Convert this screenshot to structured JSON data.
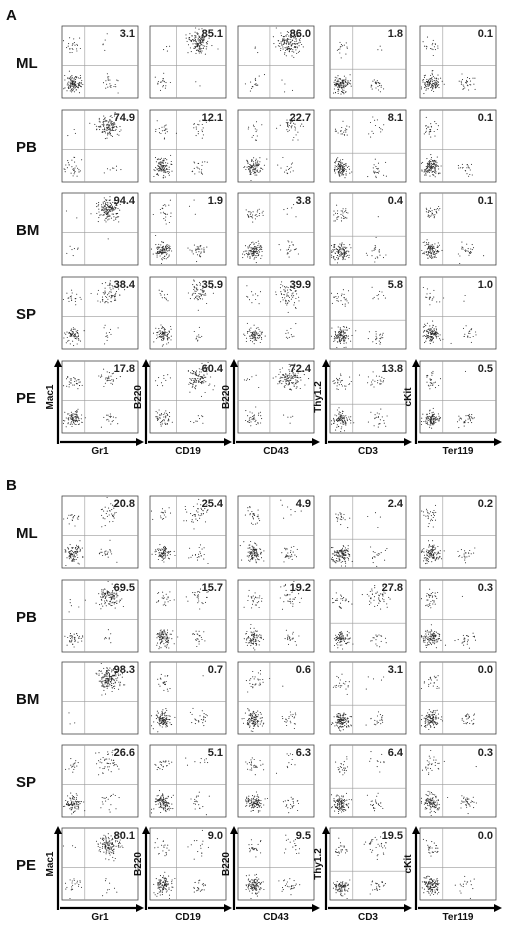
{
  "chart_data": [
    {
      "panel": "A",
      "type": "scatter",
      "rows": [
        "ML",
        "PB",
        "BM",
        "SP",
        "PE"
      ],
      "columns": [
        {
          "x_label": "Gr1",
          "y_label": "Mac1"
        },
        {
          "x_label": "CD19",
          "y_label": "B220"
        },
        {
          "x_label": "CD43",
          "y_label": "B220"
        },
        {
          "x_label": "CD3",
          "y_label": "Thy1.2"
        },
        {
          "x_label": "Ter119",
          "y_label": "cKit"
        }
      ],
      "values": [
        [
          3.1,
          85.1,
          86.0,
          1.8,
          0.1
        ],
        [
          74.9,
          12.1,
          22.7,
          8.1,
          0.1
        ],
        [
          94.4,
          1.9,
          3.8,
          0.4,
          0.1
        ],
        [
          38.4,
          35.9,
          39.9,
          5.8,
          1.0
        ],
        [
          17.8,
          60.4,
          72.4,
          13.8,
          0.5
        ]
      ],
      "grid": true
    },
    {
      "panel": "B",
      "type": "scatter",
      "rows": [
        "ML",
        "PB",
        "BM",
        "SP",
        "PE"
      ],
      "columns": [
        {
          "x_label": "Gr1",
          "y_label": "Mac1"
        },
        {
          "x_label": "CD19",
          "y_label": "B220"
        },
        {
          "x_label": "CD43",
          "y_label": "B220"
        },
        {
          "x_label": "CD3",
          "y_label": "Thy1.2"
        },
        {
          "x_label": "Ter119",
          "y_label": "cKit"
        }
      ],
      "values": [
        [
          20.8,
          25.4,
          4.9,
          2.4,
          0.2
        ],
        [
          69.5,
          15.7,
          19.2,
          27.8,
          0.3
        ],
        [
          98.3,
          0.7,
          0.6,
          3.1,
          0.0
        ],
        [
          26.6,
          5.1,
          6.3,
          6.4,
          0.3
        ],
        [
          80.1,
          9.0,
          9.5,
          19.5,
          0.0
        ]
      ],
      "grid": true
    }
  ]
}
